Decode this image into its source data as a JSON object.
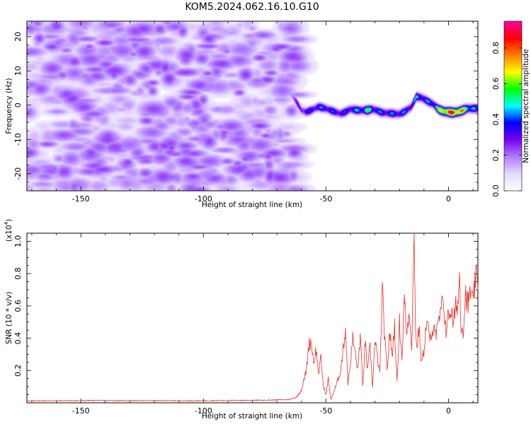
{
  "title": "KOM5.2024.062.16.10.G10",
  "colorscale": [
    "#ffffff",
    "#e6d8ff",
    "#b07cff",
    "#7a00f0",
    "#0000ff",
    "#00ffff",
    "#00ff00",
    "#ffff00",
    "#ff8000",
    "#ff0000",
    "#ff00a0"
  ],
  "trace_color": "#e8302c",
  "chart_data": [
    {
      "type": "heatmap",
      "xlabel": "Height of straight line (km)",
      "ylabel": "Frequency (Hz)",
      "colorbar_label": "Normalized spectral amplitude",
      "xlim": [
        -172,
        12
      ],
      "ylim": [
        -25,
        24.5
      ],
      "x_ticks": [
        -150,
        -100,
        -50,
        0
      ],
      "x_tick_labels": [
        "-150",
        "-100",
        "-50",
        "0"
      ],
      "y_ticks": [
        -20,
        -10,
        0,
        10,
        20
      ],
      "y_tick_labels": [
        "-20",
        "-10",
        "0",
        "10",
        "20"
      ],
      "colorbar_range": [
        0,
        0.95
      ],
      "colorbar_ticks": [
        0.0,
        0.2,
        0.4,
        0.6,
        0.8
      ],
      "colorbar_tick_labels": [
        "0.0",
        "0.2",
        "0.4",
        "0.6",
        "0.8"
      ],
      "noise_region_x": [
        -172,
        -65
      ],
      "noise_amplitude": 0.1,
      "dispersion_ridge": {
        "x": [
          -64,
          -62,
          -60,
          -58,
          -56,
          -53,
          -50,
          -47,
          -44,
          -42,
          -40,
          -37,
          -35,
          -33,
          -31,
          -29,
          -27,
          -25,
          -22,
          -20,
          -18,
          -15,
          -13,
          -11,
          -9,
          -6,
          -4,
          -2,
          0,
          2,
          4,
          6,
          8,
          10,
          12
        ],
        "freq_hz": [
          3,
          1,
          -1.5,
          -2,
          -1.5,
          -0.5,
          -1,
          -1.8,
          -2.5,
          -2,
          -1.2,
          -1.5,
          -1.5,
          -1.5,
          -1.2,
          -1.6,
          -2.2,
          -2.3,
          -2.5,
          -2.6,
          -2,
          -0.5,
          2.5,
          2.2,
          1.4,
          0.2,
          -1.2,
          -1.8,
          -2,
          -2.2,
          -2,
          -1.5,
          -1.0,
          -1.0,
          -1.0
        ],
        "amplitude": [
          0.25,
          0.3,
          0.35,
          0.4,
          0.42,
          0.45,
          0.45,
          0.42,
          0.42,
          0.42,
          0.45,
          0.48,
          0.5,
          0.65,
          0.5,
          0.45,
          0.45,
          0.45,
          0.45,
          0.45,
          0.45,
          0.45,
          0.5,
          0.5,
          0.45,
          0.5,
          0.65,
          0.85,
          0.95,
          0.95,
          0.95,
          0.8,
          0.6,
          0.5,
          0.4
        ]
      }
    },
    {
      "type": "line",
      "xlabel": "Height of straight line (km)",
      "ylabel": "SNR (10 * v/v)",
      "y_multiplier_label": "(x10",
      "y_multiplier_exp": "4",
      "xlim": [
        -172,
        12
      ],
      "ylim": [
        0,
        1.05
      ],
      "x_ticks": [
        -150,
        -100,
        -50,
        0
      ],
      "x_tick_labels": [
        "-150",
        "-100",
        "-50",
        "0"
      ],
      "y_ticks": [
        0.2,
        0.4,
        0.6,
        0.8,
        1.0
      ],
      "y_tick_labels": [
        "0.2",
        "0.4",
        "0.6",
        "0.8",
        "1.0"
      ],
      "series": [
        {
          "x": [
            -172,
            -150,
            -100,
            -75,
            -65,
            -62,
            -60,
            -58,
            -57,
            -56,
            -55,
            -54,
            -53,
            -52,
            -51,
            -50,
            -49,
            -48,
            -46,
            -44,
            -42,
            -41,
            -40,
            -39,
            -38,
            -37,
            -36,
            -35,
            -34,
            -33,
            -32,
            -31,
            -30,
            -29,
            -28,
            -27,
            -26,
            -25,
            -24,
            -23,
            -22,
            -21,
            -20,
            -19,
            -18,
            -17,
            -16,
            -15,
            -14,
            -13.5,
            -13,
            -12,
            -11,
            -10,
            -9,
            -8,
            -7,
            -6,
            -5,
            -4,
            -3,
            -2,
            -1,
            0,
            1,
            2,
            3,
            4,
            4.5,
            5,
            6,
            7,
            8,
            9,
            10,
            11,
            12
          ],
          "y": [
            0.012,
            0.014,
            0.013,
            0.016,
            0.02,
            0.035,
            0.08,
            0.2,
            0.36,
            0.38,
            0.25,
            0.33,
            0.18,
            0.28,
            0.1,
            0.05,
            0.15,
            0.02,
            0.1,
            0.2,
            0.46,
            0.12,
            0.25,
            0.4,
            0.3,
            0.2,
            0.42,
            0.1,
            0.38,
            0.2,
            0.34,
            0.1,
            0.38,
            0.28,
            0.18,
            0.7,
            0.38,
            0.2,
            0.45,
            0.28,
            0.48,
            0.12,
            0.5,
            0.28,
            0.66,
            0.42,
            0.58,
            0.36,
            1.03,
            0.52,
            0.33,
            0.47,
            0.24,
            0.33,
            0.5,
            0.44,
            0.36,
            0.52,
            0.42,
            0.49,
            0.58,
            0.62,
            0.45,
            0.54,
            0.58,
            0.48,
            0.6,
            0.62,
            0.82,
            0.5,
            0.45,
            0.68,
            0.6,
            0.7,
            0.6,
            0.78,
            0.7
          ]
        }
      ]
    }
  ]
}
